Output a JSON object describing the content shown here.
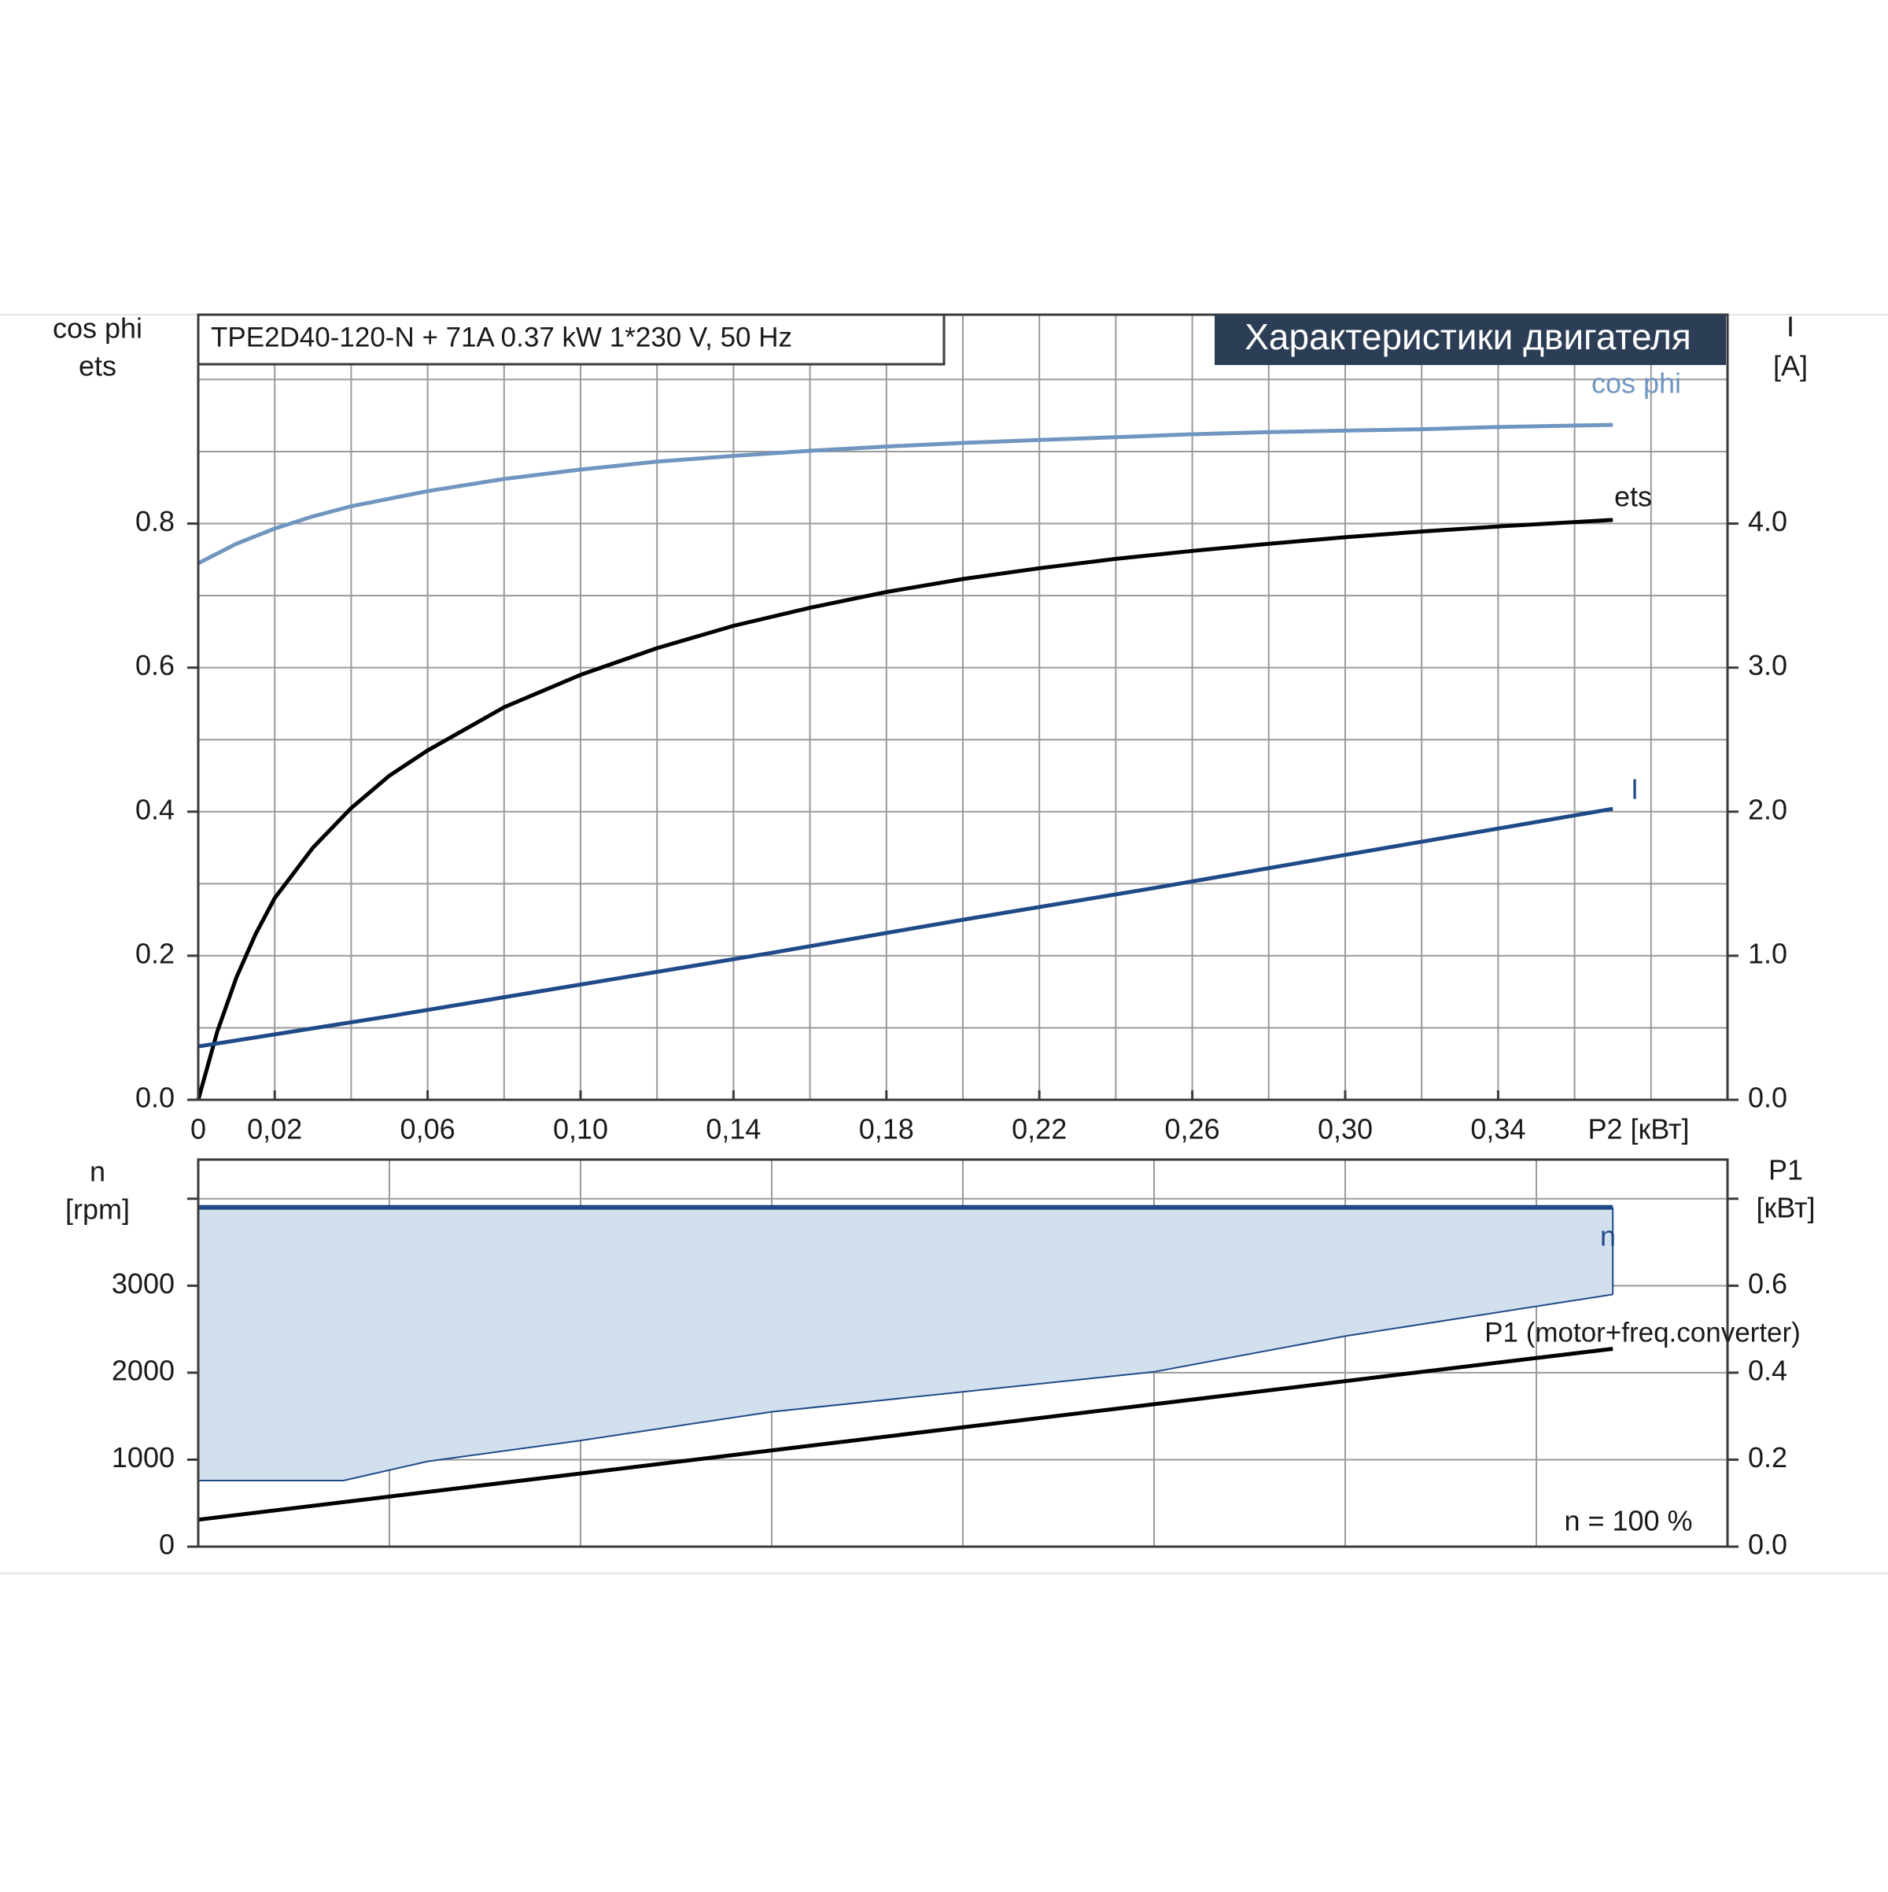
{
  "colors": {
    "grid": "#9a9a9a",
    "axis": "#3a3a3a",
    "text": "#1a1a1a",
    "cosphi": "#7096c0",
    "eta": "#000000",
    "current": "#1f4a88",
    "speed": "#1f4a88",
    "speed_fill": "#d2e0ee",
    "p1": "#000000",
    "title_bg": "#2c3e55",
    "title_fg": "#ffffff"
  },
  "header": {
    "pump_label": "TPE2D40-120-N + 71A   0.37 kW   1*230 V, 50 Hz",
    "title": "Характеристики двигателя"
  },
  "chart_data": [
    {
      "type": "line",
      "name": "motor-curves",
      "x_label": "P2 [кВт]",
      "x_ticks": [
        "0",
        "0,02",
        "0,06",
        "0,10",
        "0,14",
        "0,18",
        "0,22",
        "0,26",
        "0,30",
        "0,34"
      ],
      "x_tick_values": [
        0,
        0.02,
        0.06,
        0.1,
        0.14,
        0.18,
        0.22,
        0.26,
        0.3,
        0.34
      ],
      "xlim": [
        0,
        0.4
      ],
      "y_left_label_lines": [
        "cos phi",
        "ets"
      ],
      "y_left_ticks": [
        "0.0",
        "0.2",
        "0.4",
        "0.6",
        "0.8"
      ],
      "y_left_tick_values": [
        0,
        0.2,
        0.4,
        0.6,
        0.8
      ],
      "y_left_lim": [
        0,
        1.09
      ],
      "y_right_label_lines": [
        "I",
        "[A]"
      ],
      "y_right_ticks": [
        "0.0",
        "1.0",
        "2.0",
        "3.0",
        "4.0"
      ],
      "y_right_tick_values": [
        0,
        1,
        2,
        3,
        4
      ],
      "y_right_lim": [
        0,
        5.45
      ],
      "grid": true,
      "series": [
        {
          "name": "cos phi",
          "key": "cosphi",
          "axis": "left",
          "x": [
            0,
            0.01,
            0.02,
            0.03,
            0.04,
            0.06,
            0.08,
            0.1,
            0.12,
            0.14,
            0.16,
            0.18,
            0.2,
            0.22,
            0.24,
            0.26,
            0.28,
            0.3,
            0.32,
            0.34,
            0.37
          ],
          "y": [
            0.745,
            0.772,
            0.793,
            0.81,
            0.824,
            0.845,
            0.862,
            0.875,
            0.886,
            0.894,
            0.901,
            0.907,
            0.912,
            0.916,
            0.92,
            0.924,
            0.927,
            0.929,
            0.931,
            0.934,
            0.937
          ]
        },
        {
          "name": "ets",
          "key": "eta",
          "axis": "left",
          "x": [
            0,
            0.005,
            0.01,
            0.015,
            0.02,
            0.03,
            0.04,
            0.05,
            0.06,
            0.08,
            0.1,
            0.12,
            0.14,
            0.16,
            0.18,
            0.2,
            0.22,
            0.24,
            0.26,
            0.28,
            0.3,
            0.32,
            0.34,
            0.37
          ],
          "y": [
            0,
            0.095,
            0.17,
            0.23,
            0.28,
            0.35,
            0.405,
            0.45,
            0.485,
            0.545,
            0.59,
            0.627,
            0.658,
            0.683,
            0.705,
            0.723,
            0.738,
            0.751,
            0.762,
            0.772,
            0.781,
            0.789,
            0.796,
            0.805
          ]
        },
        {
          "name": "I",
          "key": "current",
          "axis": "right",
          "x": [
            0,
            0.05,
            0.1,
            0.15,
            0.2,
            0.25,
            0.3,
            0.37
          ],
          "y": [
            0.37,
            0.58,
            0.8,
            1.02,
            1.25,
            1.47,
            1.7,
            2.02
          ]
        }
      ]
    },
    {
      "type": "area",
      "name": "speed-power",
      "x_label": "",
      "xlim": [
        0,
        0.4
      ],
      "y_left_label_lines": [
        "n",
        "[rpm]"
      ],
      "y_left_ticks": [
        "0",
        "1000",
        "2000",
        "3000"
      ],
      "y_left_tick_values": [
        0,
        1000,
        2000,
        3000
      ],
      "y_left_lim": [
        0,
        4450
      ],
      "y_right_label_lines": [
        "P1",
        "[кВт]"
      ],
      "y_right_ticks": [
        "0.0",
        "0.2",
        "0.4",
        "0.6"
      ],
      "y_right_tick_values": [
        0,
        0.2,
        0.4,
        0.6
      ],
      "y_right_lim": [
        0,
        0.89
      ],
      "grid": true,
      "annotation": "n = 100 %",
      "series": [
        {
          "name": "n",
          "key": "speed_max",
          "axis": "left",
          "x": [
            0,
            0.37
          ],
          "y": [
            3900,
            3900
          ]
        },
        {
          "name": "",
          "key": "speed_min",
          "axis": "left",
          "x": [
            0,
            0.038,
            0.06,
            0.1,
            0.15,
            0.2,
            0.25,
            0.3,
            0.37
          ],
          "y": [
            760,
            760,
            980,
            1220,
            1550,
            1780,
            2010,
            2420,
            2900
          ]
        },
        {
          "name": "P1 (motor+freq.converter)",
          "key": "p1",
          "axis": "right",
          "x": [
            0,
            0.37
          ],
          "y": [
            0.062,
            0.455
          ]
        }
      ]
    }
  ]
}
